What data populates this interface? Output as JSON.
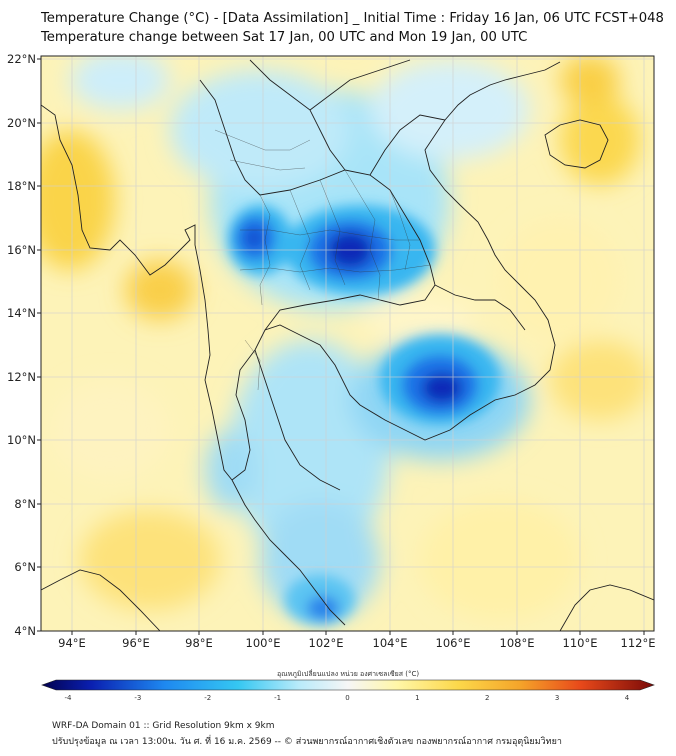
{
  "header": {
    "title_line1": "Temperature Change (°C) - [Data Assimilation] _ Initial Time : Friday 16 Jan, 06 UTC FCST+048",
    "title_line2": "Temperature change between Sat 17 Jan, 00 UTC and Mon 19 Jan, 00 UTC"
  },
  "map": {
    "lon_labels": [
      "94°E",
      "96°E",
      "98°E",
      "100°E",
      "102°E",
      "104°E",
      "106°E",
      "108°E",
      "110°E",
      "112°E"
    ],
    "lat_labels": [
      "22°N",
      "20°N",
      "18°N",
      "16°N",
      "14°N",
      "12°N",
      "10°N",
      "8°N",
      "6°N",
      "4°N"
    ]
  },
  "colorbar": {
    "title": "อุณหภูมิเปลี่ยนแปลง หน่วย องศาเซลเซียส (°C)",
    "min": -4,
    "max": 4,
    "tick_labels": [
      "-4",
      "-3",
      "-2",
      "-1",
      "0",
      "1",
      "2",
      "3",
      "4"
    ]
  },
  "footer": {
    "line1": "WRF-DA Domain 01 :: Grid Resolution 9km x 9km",
    "line2": "ปรับปรุงข้อมูล ณ เวลา 13:00น. วัน ศ. ที่ 16 ม.ค. 2569 -- © ส่วนพยากรณ์อากาศเชิงตัวเลข กองพยากรณ์อากาศ กรมอุตุนิยมวิทยา"
  },
  "colors": {
    "cold_strong": "#0a1fb0",
    "cold": "#1e88f0",
    "cool": "#6fd2f5",
    "neutral": "#f4f4f4",
    "warm_light": "#fff6b0",
    "warm": "#fcd84a",
    "warm_strong": "#f5b02a",
    "hot": "#d81f10"
  }
}
